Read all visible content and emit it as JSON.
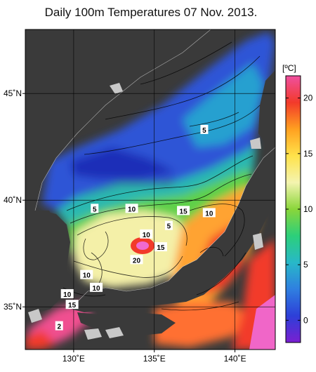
{
  "title": "Daily 100m Temperatures 07 Nov. 2013.",
  "map": {
    "lat_range": [
      33,
      48
    ],
    "lon_range": [
      127,
      142.5
    ],
    "lat_ticks": [
      {
        "value": 35,
        "label": "35˚N"
      },
      {
        "value": 40,
        "label": "40˚N"
      },
      {
        "value": 45,
        "label": "45˚N"
      }
    ],
    "lon_ticks": [
      {
        "value": 130,
        "label": "130˚E"
      },
      {
        "value": 135,
        "label": "135˚E"
      },
      {
        "value": 140,
        "label": "140˚E"
      }
    ],
    "land_color": "#3a3a3a",
    "missing_color": "#c8c8c8"
  },
  "colorbar": {
    "unit": "[ºC]",
    "min": -2,
    "max": 22,
    "ticks": [
      0,
      5,
      10,
      15,
      20
    ],
    "colors": [
      "#7a1fd1",
      "#2d3fd8",
      "#2f7fe0",
      "#28b8c8",
      "#2ccf7a",
      "#8ad63a",
      "#f4f4b0",
      "#ffe24a",
      "#ffa020",
      "#f23a2a",
      "#f050a0"
    ]
  },
  "contour_labels": [
    {
      "text": "5",
      "lon": 138.1,
      "lat": 43.3
    },
    {
      "text": "5",
      "lon": 131.3,
      "lat": 39.6
    },
    {
      "text": "10",
      "lon": 133.6,
      "lat": 39.6
    },
    {
      "text": "15",
      "lon": 136.8,
      "lat": 39.5
    },
    {
      "text": "10",
      "lon": 138.4,
      "lat": 39.4
    },
    {
      "text": "10",
      "lon": 134.5,
      "lat": 38.4
    },
    {
      "text": "5",
      "lon": 135.9,
      "lat": 38.8
    },
    {
      "text": "15",
      "lon": 135.4,
      "lat": 37.8
    },
    {
      "text": "20",
      "lon": 133.9,
      "lat": 37.2
    },
    {
      "text": "10",
      "lon": 130.8,
      "lat": 36.5
    },
    {
      "text": "10",
      "lon": 131.4,
      "lat": 35.9
    },
    {
      "text": "10",
      "lon": 129.6,
      "lat": 35.6
    },
    {
      "text": "15",
      "lon": 129.9,
      "lat": 35.1
    },
    {
      "text": "2",
      "lon": 129.1,
      "lat": 34.1
    }
  ]
}
